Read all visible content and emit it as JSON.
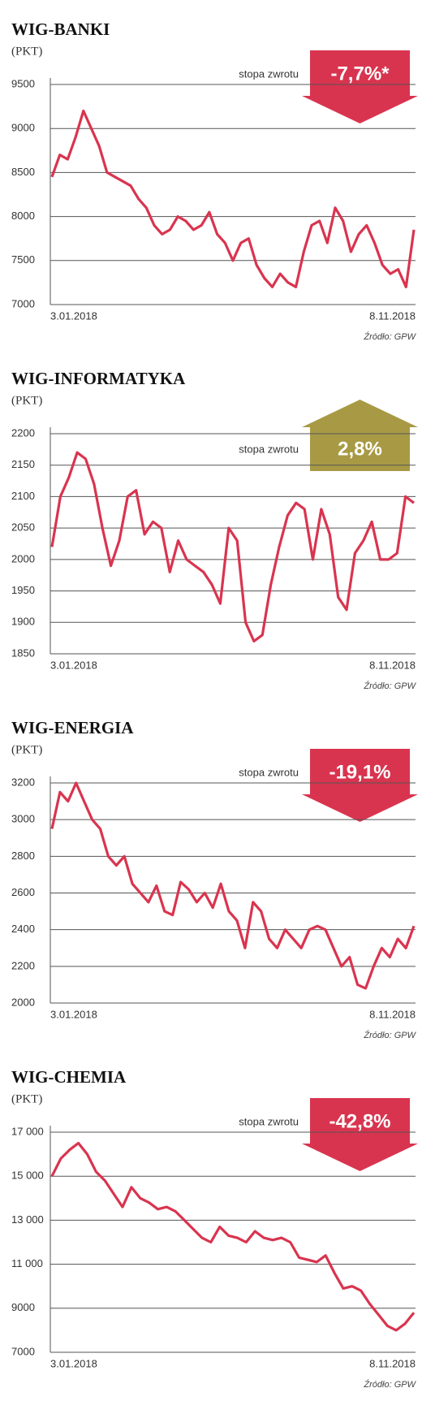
{
  "chart_data": [
    {
      "type": "line",
      "title": "WIG-BANKI",
      "y_label": "(PKT)",
      "return_caption": "stopa zwrotu",
      "return_label": "-7,7%*",
      "badge_direction": "down",
      "badge_color": "#d9344f",
      "color": "#d9344f",
      "grid": true,
      "source": "Źródło: GPW",
      "categories": [
        "3.01.2018",
        null,
        null,
        null,
        null,
        null,
        null,
        null,
        null,
        null,
        null,
        null,
        null,
        null,
        null,
        null,
        null,
        null,
        null,
        null,
        null,
        null,
        null,
        null,
        null,
        null,
        null,
        null,
        null,
        null,
        null,
        null,
        null,
        null,
        null,
        null,
        null,
        null,
        null,
        null,
        null,
        null,
        null,
        null,
        null,
        null,
        "8.11.2018"
      ],
      "values": [
        8450,
        8700,
        8650,
        8900,
        9200,
        9000,
        8800,
        8500,
        8450,
        8400,
        8350,
        8200,
        8100,
        7900,
        7800,
        7850,
        8000,
        7950,
        7850,
        7900,
        8050,
        7800,
        7700,
        7500,
        7700,
        7750,
        7450,
        7300,
        7200,
        7350,
        7250,
        7200,
        7600,
        7900,
        7950,
        7700,
        8100,
        7950,
        7600,
        7800,
        7900,
        7700,
        7450,
        7350,
        7400,
        7200,
        7850
      ],
      "ylim": [
        7000,
        9500
      ],
      "yticks": [
        7000,
        7500,
        8000,
        8500,
        9000,
        9500
      ]
    },
    {
      "type": "line",
      "title": "WIG-INFORMATYKA",
      "y_label": "(PKT)",
      "return_caption": "stopa zwrotu",
      "return_label": "2,8%",
      "badge_direction": "up",
      "badge_color": "#a89a45",
      "color": "#d9344f",
      "grid": true,
      "source": "Źródło: GPW",
      "categories": [
        "3.01.2018",
        null,
        null,
        null,
        null,
        null,
        null,
        null,
        null,
        null,
        null,
        null,
        null,
        null,
        null,
        null,
        null,
        null,
        null,
        null,
        null,
        null,
        null,
        null,
        null,
        null,
        null,
        null,
        null,
        null,
        null,
        null,
        null,
        null,
        null,
        null,
        null,
        null,
        null,
        null,
        null,
        null,
        null,
        "8.11.2018"
      ],
      "values": [
        2020,
        2100,
        2130,
        2170,
        2160,
        2120,
        2050,
        1990,
        2030,
        2100,
        2110,
        2040,
        2060,
        2050,
        1980,
        2030,
        2000,
        1990,
        1980,
        1960,
        1930,
        2050,
        2030,
        1900,
        1870,
        1880,
        1960,
        2020,
        2070,
        2090,
        2080,
        2000,
        2080,
        2040,
        1940,
        1920,
        2010,
        2030,
        2060,
        2000,
        2000,
        2010,
        2100,
        2090
      ],
      "ylim": [
        1850,
        2200
      ],
      "yticks": [
        1850,
        1900,
        1950,
        2000,
        2050,
        2100,
        2150,
        2200
      ]
    },
    {
      "type": "line",
      "title": "WIG-ENERGIA",
      "y_label": "(PKT)",
      "return_caption": "stopa zwrotu",
      "return_label": "-19,1%",
      "badge_direction": "down",
      "badge_color": "#d9344f",
      "color": "#d9344f",
      "grid": true,
      "source": "Źródło: GPW",
      "categories": [
        "3.01.2018",
        null,
        null,
        null,
        null,
        null,
        null,
        null,
        null,
        null,
        null,
        null,
        null,
        null,
        null,
        null,
        null,
        null,
        null,
        null,
        null,
        null,
        null,
        null,
        null,
        null,
        null,
        null,
        null,
        null,
        null,
        null,
        null,
        null,
        null,
        null,
        null,
        null,
        null,
        null,
        null,
        null,
        null,
        null,
        null,
        "8.11.2018"
      ],
      "values": [
        2950,
        3150,
        3100,
        3200,
        3100,
        3000,
        2950,
        2800,
        2750,
        2800,
        2650,
        2600,
        2550,
        2640,
        2500,
        2480,
        2660,
        2620,
        2550,
        2600,
        2520,
        2650,
        2500,
        2450,
        2300,
        2550,
        2500,
        2350,
        2300,
        2400,
        2350,
        2300,
        2400,
        2420,
        2400,
        2300,
        2200,
        2250,
        2100,
        2080,
        2200,
        2300,
        2250,
        2350,
        2300,
        2420
      ],
      "ylim": [
        2000,
        3200
      ],
      "yticks": [
        2000,
        2200,
        2400,
        2600,
        2800,
        3000,
        3200
      ]
    },
    {
      "type": "line",
      "title": "WIG-CHEMIA",
      "y_label": "(PKT)",
      "return_caption": "stopa zwrotu",
      "return_label": "-42,8%",
      "badge_direction": "down",
      "badge_color": "#d9344f",
      "color": "#d9344f",
      "grid": true,
      "source": "Źródło: GPW",
      "categories": [
        "3.01.2018",
        null,
        null,
        null,
        null,
        null,
        null,
        null,
        null,
        null,
        null,
        null,
        null,
        null,
        null,
        null,
        null,
        null,
        null,
        null,
        null,
        null,
        null,
        null,
        null,
        null,
        null,
        null,
        null,
        null,
        null,
        null,
        null,
        null,
        null,
        null,
        null,
        null,
        null,
        null,
        null,
        "8.11.2018"
      ],
      "values": [
        15000,
        15800,
        16200,
        16500,
        16000,
        15200,
        14800,
        14200,
        13600,
        14500,
        14000,
        13800,
        13500,
        13600,
        13400,
        13000,
        12600,
        12200,
        12000,
        12700,
        12300,
        12200,
        12000,
        12500,
        12200,
        12100,
        12200,
        12000,
        11300,
        11200,
        11100,
        11400,
        10600,
        9900,
        10000,
        9800,
        9200,
        8700,
        8200,
        8000,
        8300,
        8800
      ],
      "ylim": [
        7000,
        17000
      ],
      "yticks": [
        7000,
        9000,
        {
          "value": 11000,
          "label": "11 000"
        },
        {
          "value": 13000,
          "label": "13 000"
        },
        {
          "value": 15000,
          "label": "15 000"
        },
        {
          "value": 17000,
          "label": "17 000"
        }
      ]
    }
  ]
}
